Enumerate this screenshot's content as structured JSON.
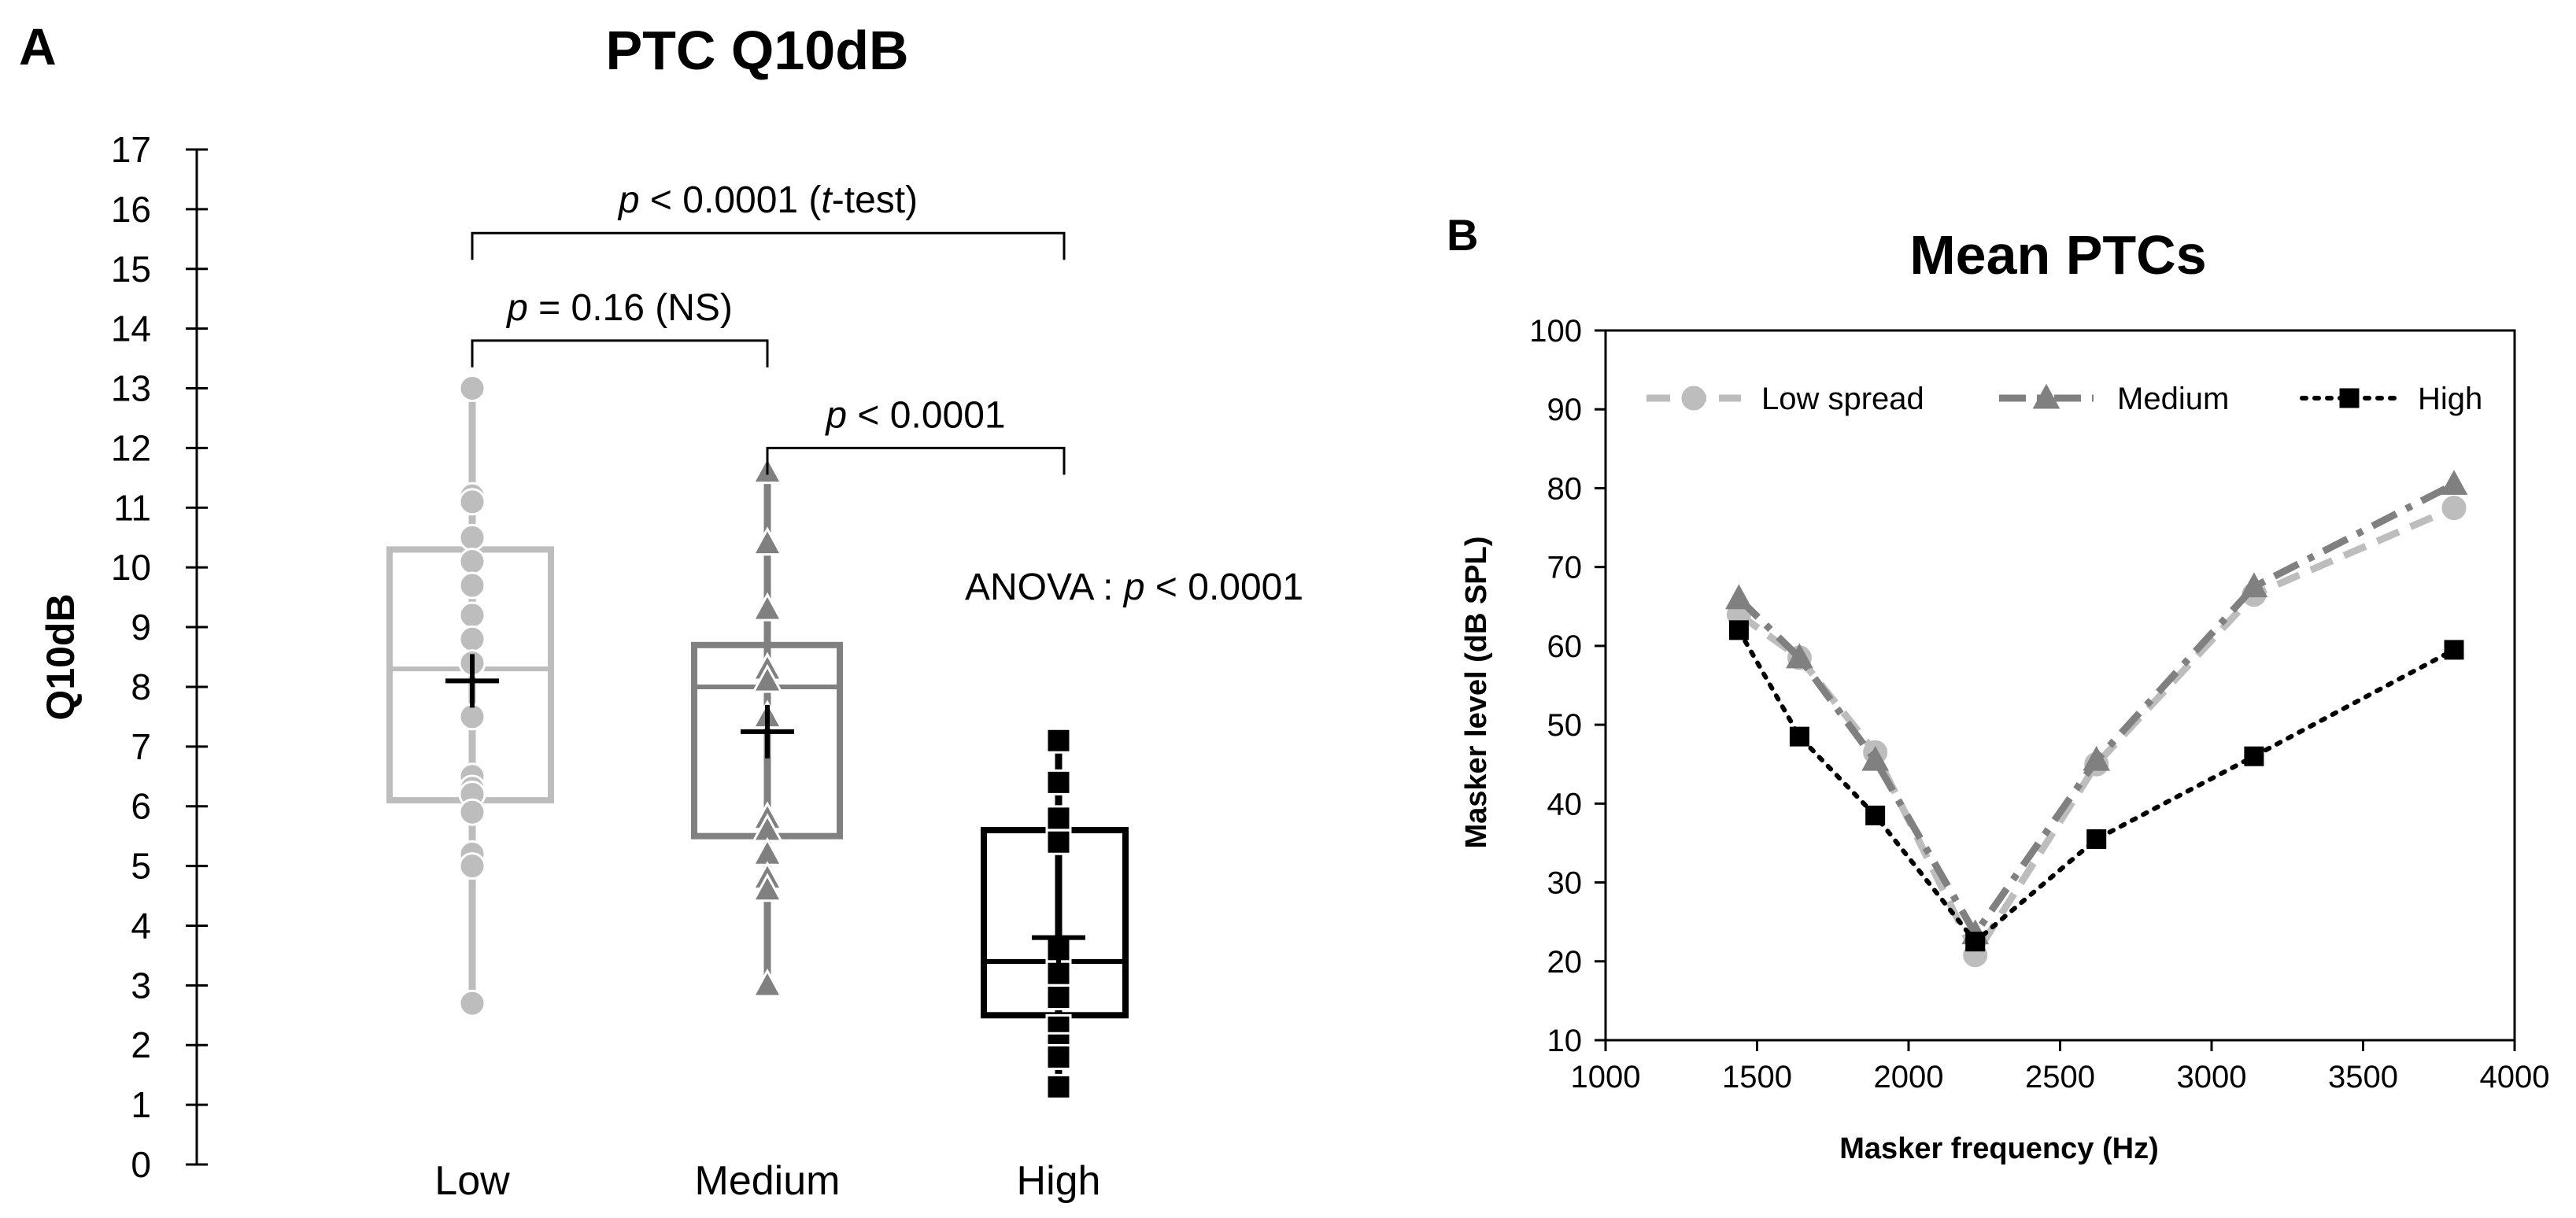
{
  "colors": {
    "low": "#bdbdbd",
    "medium": "#808080",
    "high": "#000000",
    "bracket": "#000000",
    "text": "#000000"
  },
  "panel_a_label": "A",
  "panel_b_label": "B",
  "chart_data": [
    {
      "type": "box",
      "title": "PTC Q10dB",
      "ylabel": "Q10dB",
      "xlabel": "",
      "ylim": [
        0,
        17
      ],
      "yticks": [
        0,
        1,
        2,
        3,
        4,
        5,
        6,
        7,
        8,
        9,
        10,
        11,
        12,
        13,
        14,
        15,
        16,
        17
      ],
      "categories": [
        "Low",
        "Medium",
        "High"
      ],
      "groups": [
        {
          "name": "Low",
          "color_key": "low",
          "marker": "circle",
          "whisker_min": 2.7,
          "q1": 6.1,
          "median": 8.3,
          "q3": 10.3,
          "whisker_max": 13.0,
          "mean": 8.1,
          "points": [
            13.0,
            11.2,
            11.1,
            10.5,
            10.1,
            9.7,
            9.2,
            8.8,
            8.4,
            7.5,
            6.5,
            6.3,
            6.2,
            5.9,
            5.2,
            5.0,
            2.7
          ]
        },
        {
          "name": "Medium",
          "color_key": "medium",
          "marker": "triangle",
          "whisker_min": 3.0,
          "q1": 5.5,
          "median": 8.0,
          "q3": 8.7,
          "whisker_max": 11.6,
          "mean": 7.25,
          "points": [
            11.6,
            10.4,
            9.3,
            8.3,
            8.1,
            7.5,
            5.8,
            5.6,
            5.2,
            4.8,
            4.6,
            3.0
          ]
        },
        {
          "name": "High",
          "color_key": "high",
          "marker": "square",
          "whisker_min": 1.3,
          "q1": 2.5,
          "median": 3.4,
          "q3": 5.6,
          "whisker_max": 7.1,
          "mean": 3.8,
          "points": [
            7.1,
            6.4,
            5.8,
            5.4,
            3.6,
            3.2,
            2.8,
            2.3,
            2.0,
            1.8,
            1.3
          ]
        }
      ],
      "annotations": {
        "overall": {
          "from": 0,
          "to": 2,
          "y": 15.6,
          "text": "p < 0.0001 (t-test)",
          "parts": [
            "p",
            " < 0.0001 (",
            "t",
            "-test)"
          ]
        },
        "low_medium": {
          "from": 0,
          "to": 1,
          "y": 13.8,
          "text": "p = 0.16 (NS)",
          "parts": [
            "p",
            " = 0.16 (NS)"
          ]
        },
        "medium_high": {
          "from": 1,
          "to": 2,
          "y": 12.0,
          "text": "p < 0.0001",
          "parts": [
            "p",
            " < 0.0001"
          ]
        },
        "anova": {
          "text": "ANOVA : p < 0.0001",
          "parts": [
            "ANOVA : ",
            "p",
            " < 0.0001"
          ]
        }
      }
    },
    {
      "type": "line",
      "title": "Mean PTCs",
      "xlabel": "Masker frequency (Hz)",
      "ylabel": "Masker level (dB SPL)",
      "xlim": [
        1000,
        4000
      ],
      "ylim": [
        10,
        100
      ],
      "xticks": [
        1000,
        1500,
        2000,
        2500,
        3000,
        3500,
        4000
      ],
      "yticks": [
        10,
        20,
        30,
        40,
        50,
        60,
        70,
        80,
        90,
        100
      ],
      "legend_position": "top",
      "series": [
        {
          "name": "Low spread",
          "color_key": "low",
          "marker": "circle",
          "dash": "long-dash",
          "x": [
            1440,
            1640,
            1890,
            2220,
            2620,
            3140,
            3800
          ],
          "y": [
            64,
            58.5,
            46.5,
            20.8,
            45,
            66.5,
            77.5
          ]
        },
        {
          "name": "Medium",
          "color_key": "medium",
          "marker": "triangle",
          "dash": "dash-dot",
          "x": [
            1440,
            1640,
            1890,
            2220,
            2620,
            3140,
            3800
          ],
          "y": [
            66,
            58.5,
            45.5,
            23.5,
            45.5,
            67.5,
            80.5
          ]
        },
        {
          "name": "High",
          "color_key": "high",
          "marker": "square",
          "dash": "dotted",
          "x": [
            1440,
            1640,
            1890,
            2220,
            2620,
            3140,
            3800
          ],
          "y": [
            62,
            48.5,
            38.5,
            22.5,
            35.5,
            46,
            59.5
          ]
        }
      ]
    }
  ]
}
